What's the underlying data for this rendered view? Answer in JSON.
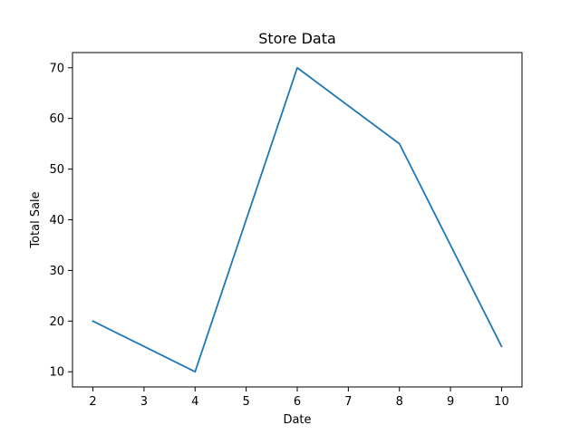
{
  "chart_data": {
    "type": "line",
    "title": "Store Data",
    "xlabel": "Date",
    "ylabel": "Total Sale",
    "x": [
      2,
      4,
      6,
      8,
      10
    ],
    "series": [
      {
        "values": [
          20,
          10,
          70,
          55,
          15
        ],
        "color": "#1f77b4"
      }
    ],
    "xlim": [
      1.6,
      10.4
    ],
    "ylim": [
      7,
      73
    ],
    "xticks": [
      2,
      3,
      4,
      5,
      6,
      7,
      8,
      9,
      10
    ],
    "yticks": [
      10,
      20,
      30,
      40,
      50,
      60,
      70
    ],
    "grid": false,
    "legend": "none"
  }
}
